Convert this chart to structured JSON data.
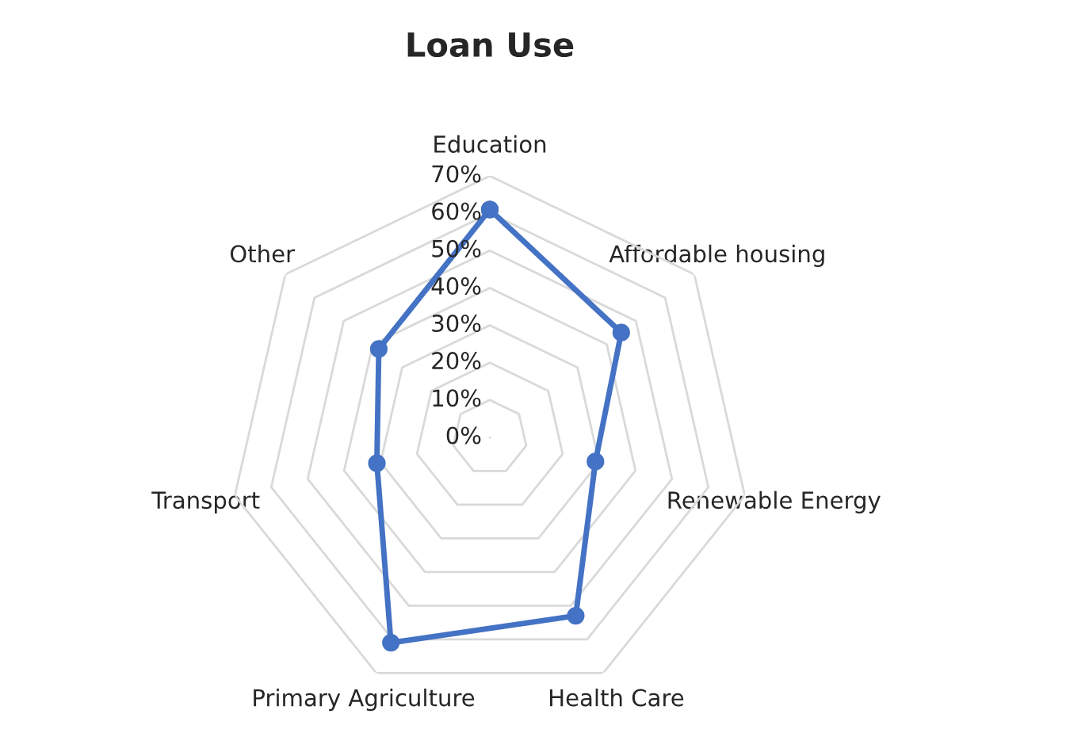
{
  "chart_data": {
    "type": "radar",
    "title": "Loan Use",
    "categories": [
      "Education",
      "Affordable housing",
      "Renewable Energy",
      "Health Care",
      "Primary Agriculture",
      "Transport",
      "Other"
    ],
    "series": [
      {
        "color": "#4472c4",
        "values": [
          61,
          45,
          29,
          53,
          61,
          31,
          38
        ]
      }
    ],
    "ylim": [
      0,
      70
    ],
    "yticks": [
      {
        "value": 0,
        "label": "0%"
      },
      {
        "value": 10,
        "label": "10%"
      },
      {
        "value": 20,
        "label": "20%"
      },
      {
        "value": 30,
        "label": "30%"
      },
      {
        "value": 40,
        "label": "40%"
      },
      {
        "value": 50,
        "label": "50%"
      },
      {
        "value": 60,
        "label": "60%"
      },
      {
        "value": 70,
        "label": "70%"
      }
    ],
    "grid": true,
    "marker": "circle",
    "line_style": "solid"
  }
}
